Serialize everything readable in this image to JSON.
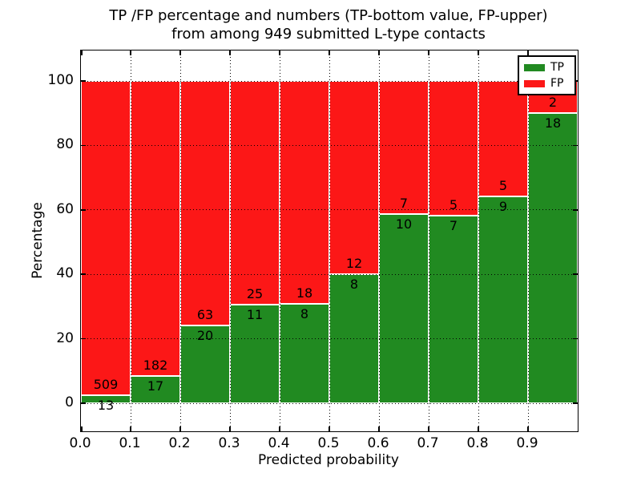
{
  "figure": {
    "title_line1": "TP /FP percentage and numbers (TP-bottom value, FP-upper)",
    "title_line2": "from among 949 submitted L-type contacts"
  },
  "chart_data": {
    "type": "bar",
    "stacked": true,
    "title": "TP /FP percentage and numbers (TP-bottom value, FP-upper) from among 949 submitted L-type contacts",
    "xlabel": "Predicted probability",
    "ylabel": "Percentage",
    "total_contacts": 949,
    "bin_width": 0.1,
    "categories": [
      "0.0",
      "0.1",
      "0.2",
      "0.3",
      "0.4",
      "0.5",
      "0.6",
      "0.7",
      "0.8",
      "0.9"
    ],
    "xtick_labels": [
      "0.0",
      "0.1",
      "0.2",
      "0.3",
      "0.4",
      "0.5",
      "0.6",
      "0.7",
      "0.8",
      "0.9"
    ],
    "yticks": [
      0,
      20,
      40,
      60,
      80,
      100
    ],
    "xlim": [
      0.0,
      1.0
    ],
    "ylim": [
      -9,
      110
    ],
    "grid": "dotted",
    "bar_edge_color": "#ffffff",
    "annotation_rule": "FP count printed above segment boundary, TP count printed below boundary",
    "series": [
      {
        "name": "TP",
        "color": "#218a21",
        "counts": [
          13,
          17,
          20,
          11,
          8,
          8,
          10,
          7,
          9,
          18
        ],
        "percent": [
          2.5,
          8.5,
          24.1,
          30.6,
          30.8,
          40.0,
          58.8,
          58.3,
          64.3,
          90.0
        ]
      },
      {
        "name": "FP",
        "color": "#fc1717",
        "counts": [
          509,
          182,
          63,
          25,
          18,
          12,
          7,
          5,
          5,
          2
        ],
        "percent": [
          97.5,
          91.5,
          75.9,
          69.4,
          69.2,
          60.0,
          41.2,
          41.7,
          35.7,
          10.0
        ]
      }
    ],
    "legend": {
      "position": "upper right",
      "entries": [
        "TP",
        "FP"
      ]
    }
  }
}
